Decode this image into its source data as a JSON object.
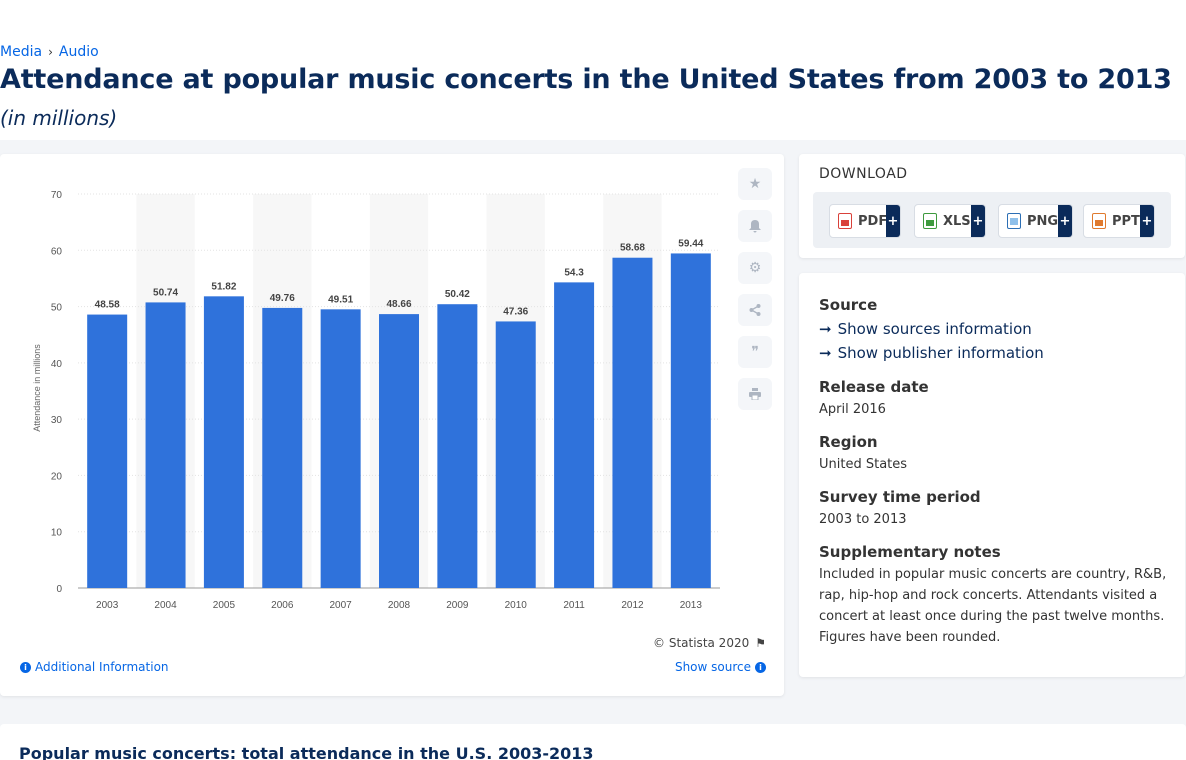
{
  "breadcrumb": {
    "items": [
      "Media",
      "Audio"
    ]
  },
  "title": "Attendance at popular music concerts in the United States from 2003 to 2013",
  "subtitle": "(in millions)",
  "chart_data": {
    "type": "bar",
    "categories": [
      "2003",
      "2004",
      "2005",
      "2006",
      "2007",
      "2008",
      "2009",
      "2010",
      "2011",
      "2012",
      "2013"
    ],
    "values": [
      48.58,
      50.74,
      51.82,
      49.76,
      49.51,
      48.66,
      50.42,
      47.36,
      54.3,
      58.68,
      59.44
    ],
    "value_labels": [
      "48.58",
      "50.74",
      "51.82",
      "49.76",
      "49.51",
      "48.66",
      "50.42",
      "47.36",
      "54.3",
      "58.68",
      "59.44"
    ],
    "ylabel": "Attendance in millions",
    "ylim": [
      0,
      70
    ],
    "yticks": [
      "0",
      "10",
      "20",
      "30",
      "40",
      "50",
      "60",
      "70"
    ],
    "bar_color": "#2f72db",
    "grid": true
  },
  "chart_footer": {
    "copyright": "© Statista 2020",
    "additional_info": "Additional Information",
    "show_source": "Show source"
  },
  "tools": [
    "star-icon",
    "bell-icon",
    "gear-icon",
    "share-icon",
    "quote-icon",
    "print-icon"
  ],
  "download": {
    "title": "DOWNLOAD",
    "buttons": [
      {
        "label": "PDF",
        "color": "#d9413a"
      },
      {
        "label": "XLS",
        "color": "#3e9a3e"
      },
      {
        "label": "PNG",
        "color": "#2c6fb5"
      },
      {
        "label": "PPT",
        "color": "#e07a2e"
      }
    ],
    "plus": "+"
  },
  "meta": {
    "source_h": "Source",
    "show_sources": "Show sources information",
    "show_publisher": "Show publisher information",
    "release_h": "Release date",
    "release_v": "April 2016",
    "region_h": "Region",
    "region_v": "United States",
    "survey_h": "Survey time period",
    "survey_v": "2003 to 2013",
    "notes_h": "Supplementary notes",
    "notes_v": "Included in popular music concerts are country, R&B, rap, hip-hop and rock concerts. Attendants visited a concert at least once during the past twelve months. Figures have been rounded."
  },
  "bottom_title": "Popular music concerts: total attendance in the U.S. 2003-2013"
}
